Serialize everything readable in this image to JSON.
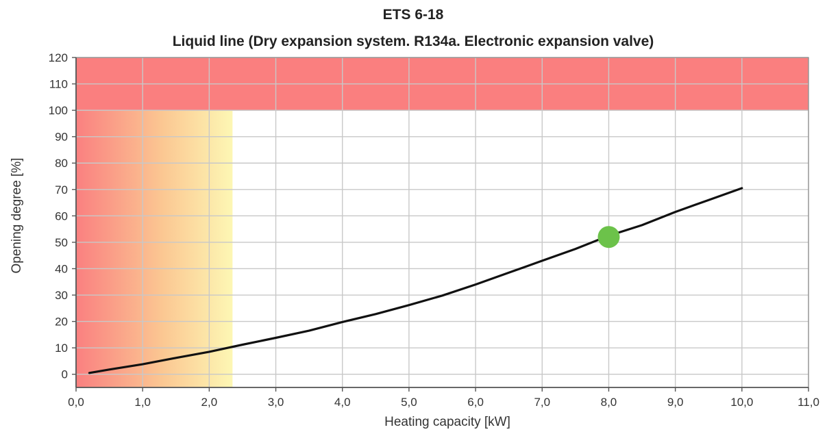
{
  "chart_data": {
    "type": "line",
    "title": "ETS 6-18",
    "subtitle": "Liquid line (Dry expansion system. R134a. Electronic expansion valve)",
    "xlabel": "Heating capacity [kW]",
    "ylabel": "Opening degree [%]",
    "xlim": [
      0,
      11
    ],
    "ylim": [
      -5,
      120
    ],
    "x_ticks": [
      0,
      1,
      2,
      3,
      4,
      5,
      6,
      7,
      8,
      9,
      10,
      11
    ],
    "x_tick_labels": [
      "0,0",
      "1,0",
      "2,0",
      "3,0",
      "4,0",
      "5,0",
      "6,0",
      "7,0",
      "8,0",
      "9,0",
      "10,0",
      "11,0"
    ],
    "y_ticks": [
      0,
      10,
      20,
      30,
      40,
      50,
      60,
      70,
      80,
      90,
      100,
      110,
      120
    ],
    "y_tick_labels": [
      "0",
      "10",
      "20",
      "30",
      "40",
      "50",
      "60",
      "70",
      "80",
      "90",
      "100",
      "110",
      "120"
    ],
    "grid": true,
    "series": [
      {
        "x": [
          0.2,
          0.5,
          1.0,
          1.5,
          2.0,
          2.5,
          3.0,
          3.5,
          4.0,
          4.5,
          5.0,
          5.5,
          6.0,
          6.5,
          7.0,
          7.5,
          8.0,
          8.5,
          9.0,
          9.5,
          10.0
        ],
        "y": [
          0.5,
          1.8,
          3.8,
          6.2,
          8.5,
          11.2,
          13.8,
          16.5,
          19.8,
          22.8,
          26.2,
          29.8,
          34.0,
          38.5,
          43.0,
          47.5,
          52.5,
          56.5,
          61.5,
          66.0,
          70.5
        ],
        "color": "#111111"
      }
    ],
    "operating_point": {
      "x": 8.0,
      "y": 52.0,
      "color": "#6cc24a"
    },
    "regions": [
      {
        "kind": "over-limit",
        "y_from": 100,
        "y_to": 120,
        "color": "#fa7f7f"
      },
      {
        "kind": "low-capacity",
        "x_from": 0,
        "x_to": 2.35,
        "colors": [
          "#fa8080",
          "#fbc792",
          "#fdf7b4"
        ]
      }
    ]
  }
}
